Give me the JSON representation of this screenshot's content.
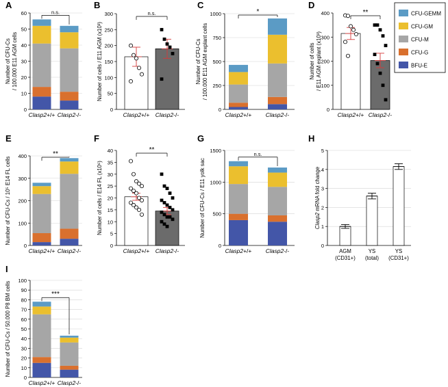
{
  "colors": {
    "cfu_gemm": "#5B9BC5",
    "cfu_gm": "#EBBF2E",
    "cfu_m": "#A6A6A6",
    "cfu_g": "#D9702E",
    "bfu_e": "#4356A8",
    "bar_white": "#FFFFFF",
    "bar_grey": "#6B6B6B",
    "error_red": "#D63A3A"
  },
  "legend": {
    "items": [
      {
        "label": "CFU-GEMM",
        "color": "#5B9BC5"
      },
      {
        "label": "CFU-GM",
        "color": "#EBBF2E"
      },
      {
        "label": "CFU-M",
        "color": "#A6A6A6"
      },
      {
        "label": "CFU-G",
        "color": "#D9702E"
      },
      {
        "label": "BFU-E",
        "color": "#4356A8"
      }
    ]
  },
  "chart_data": [
    {
      "panel": "A",
      "type": "bar",
      "stacked": true,
      "categories": [
        "Clasp2+/+",
        "Clasp2-/-"
      ],
      "series": [
        {
          "name": "BFU-E",
          "values": [
            8,
            5.5
          ]
        },
        {
          "name": "CFU-G",
          "values": [
            6,
            5.5
          ]
        },
        {
          "name": "CFU-M",
          "values": [
            27,
            27
          ]
        },
        {
          "name": "CFU-GM",
          "values": [
            11,
            10
          ]
        },
        {
          "name": "CFU-GEMM",
          "values": [
            4,
            4
          ]
        }
      ],
      "ylabel_lines": [
        "Number of CFU-Cs",
        "/ 100.000 E11 AGM cells"
      ],
      "ylim": [
        0,
        60
      ],
      "yticks": [
        0,
        10,
        20,
        30,
        40,
        50,
        60
      ],
      "significance": "n.s."
    },
    {
      "panel": "B",
      "type": "bar",
      "categories": [
        "Clasp2+/+",
        "Clasp2-/-"
      ],
      "values": [
        165,
        190
      ],
      "error": [
        30,
        30
      ],
      "points": [
        [
          200,
          170,
          160,
          130,
          110,
          88
        ],
        [
          250,
          220,
          205,
          195,
          175,
          95
        ]
      ],
      "ylabel_lines": [
        "Number of cells / E11 AGM (x10³)"
      ],
      "ylim": [
        0,
        300
      ],
      "yticks": [
        0,
        50,
        100,
        150,
        200,
        250,
        300
      ],
      "significance": "n.s."
    },
    {
      "panel": "C",
      "type": "bar",
      "stacked": true,
      "categories": [
        "Clasp2+/+",
        "Clasp2-/-"
      ],
      "series": [
        {
          "name": "BFU-E",
          "values": [
            25,
            55
          ]
        },
        {
          "name": "CFU-G",
          "values": [
            45,
            75
          ]
        },
        {
          "name": "CFU-M",
          "values": [
            190,
            350
          ]
        },
        {
          "name": "CFU-GM",
          "values": [
            130,
            300
          ]
        },
        {
          "name": "CFU-GEMM",
          "values": [
            75,
            170
          ]
        }
      ],
      "ylabel_lines": [
        "Number of CFU-Cs",
        "/ 100.000 E11 AGM explant cells"
      ],
      "ylim": [
        0,
        1000
      ],
      "yticks": [
        0,
        250,
        500,
        750,
        1000
      ],
      "significance": "*"
    },
    {
      "panel": "D",
      "type": "bar",
      "categories": [
        "Clasp2+/+",
        "Clasp2-/-"
      ],
      "values": [
        315,
        203
      ],
      "error": [
        25,
        30
      ],
      "points": [
        [
          390,
          388,
          345,
          330,
          312,
          280,
          222
        ],
        [
          350,
          350,
          330,
          305,
          265,
          228,
          190,
          150,
          100,
          40
        ]
      ],
      "ylabel_lines": [
        "Number of cells",
        "/ E11 AGM explant (x10³)"
      ],
      "ylim": [
        0,
        400
      ],
      "yticks": [
        0,
        100,
        200,
        300,
        400
      ],
      "significance": "**"
    },
    {
      "panel": "E",
      "type": "bar",
      "stacked": true,
      "categories": [
        "Clasp2+/+",
        "Clasp2-/-"
      ],
      "series": [
        {
          "name": "BFU-E",
          "values": [
            15,
            30
          ]
        },
        {
          "name": "CFU-G",
          "values": [
            40,
            45
          ]
        },
        {
          "name": "CFU-M",
          "values": [
            175,
            245
          ]
        },
        {
          "name": "CFU-GM",
          "values": [
            35,
            55
          ]
        },
        {
          "name": "CFU-GEMM",
          "values": [
            15,
            15
          ]
        }
      ],
      "ylabel_lines": [
        "Number of CFU-Cs / 10⁵ E14 FL cells"
      ],
      "ylim": [
        0,
        400
      ],
      "yticks": [
        0,
        100,
        200,
        300,
        400
      ],
      "significance": "**"
    },
    {
      "panel": "F",
      "type": "bar",
      "categories": [
        "Clasp2+/+",
        "Clasp2-/-"
      ],
      "values": [
        20.5,
        14.5
      ],
      "error": [
        1.5,
        1.5
      ],
      "points": [
        [
          35.5,
          30,
          27,
          26,
          25,
          24,
          23,
          22,
          20,
          19,
          18,
          17,
          16,
          15,
          13
        ],
        [
          30,
          25,
          24,
          22,
          20,
          19,
          18,
          17,
          16,
          15,
          14,
          13,
          12,
          12,
          11,
          10,
          9,
          8
        ]
      ],
      "ylabel_lines": [
        "Number of cells / E14 FL (x10⁶)"
      ],
      "ylim": [
        0,
        40
      ],
      "yticks": [
        0,
        5,
        10,
        15,
        20,
        25,
        30,
        35,
        40
      ],
      "significance": "**"
    },
    {
      "panel": "G",
      "type": "bar",
      "stacked": true,
      "categories": [
        "Clasp2+/+",
        "Clasp2-/-"
      ],
      "series": [
        {
          "name": "BFU-E",
          "values": [
            400,
            375
          ]
        },
        {
          "name": "CFU-G",
          "values": [
            100,
            100
          ]
        },
        {
          "name": "CFU-M",
          "values": [
            470,
            450
          ]
        },
        {
          "name": "CFU-GM",
          "values": [
            280,
            225
          ]
        },
        {
          "name": "CFU-GEMM",
          "values": [
            80,
            80
          ]
        }
      ],
      "ylabel_lines": [
        "Number of CFU-Cs / E11 yolk sac"
      ],
      "ylim": [
        0,
        1500
      ],
      "yticks": [
        0,
        500,
        1000,
        1500
      ],
      "significance": "n.s."
    },
    {
      "panel": "H",
      "type": "bar",
      "categories": [
        "AGM|(CD31+)",
        "YS|(total)",
        "YS|(CD31+)"
      ],
      "values": [
        1.0,
        2.6,
        4.15
      ],
      "error": [
        0.1,
        0.15,
        0.15
      ],
      "ylabel_lines": [
        "Clasp2 mRNA fold change"
      ],
      "ylim": [
        0,
        5
      ],
      "yticks": [
        0,
        1,
        2,
        3,
        4,
        5
      ]
    },
    {
      "panel": "I",
      "type": "bar",
      "stacked": true,
      "categories": [
        "Clasp2+/+",
        "Clasp2-/-"
      ],
      "series": [
        {
          "name": "BFU-E",
          "values": [
            15,
            8
          ]
        },
        {
          "name": "CFU-G",
          "values": [
            6,
            4
          ]
        },
        {
          "name": "CFU-M",
          "values": [
            44,
            24
          ]
        },
        {
          "name": "CFU-GM",
          "values": [
            8,
            5
          ]
        },
        {
          "name": "CFU-GEMM",
          "values": [
            5,
            2
          ]
        }
      ],
      "ylabel_lines": [
        "Number of CFU-Cs / 50.000 P8 BM cells"
      ],
      "ylim": [
        0,
        100
      ],
      "yticks": [
        0,
        10,
        20,
        30,
        40,
        50,
        60,
        70,
        80,
        90,
        100
      ],
      "significance": "***"
    }
  ]
}
